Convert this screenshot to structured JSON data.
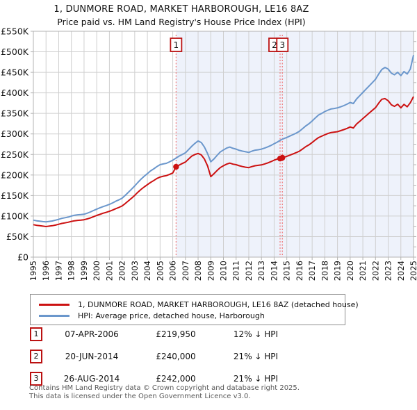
{
  "title": "1, DUNMORE ROAD, MARKET HARBOROUGH, LE16 8AZ",
  "subtitle": "Price paid vs. HM Land Registry's House Price Index (HPI)",
  "colors": {
    "property_line": "#cc1111",
    "hpi_line": "#6b97cc",
    "event_line": "#f07878",
    "event_box_border": "#bb1111",
    "shade": "#eef2fb",
    "grid": "#cfcfcf",
    "spine": "#b3b3b3",
    "footer_text": "#595959"
  },
  "chart_data": {
    "type": "line",
    "title": "1, DUNMORE ROAD, MARKET HARBOROUGH, LE16 8AZ",
    "subtitle": "Price paid vs. HM Land Registry's House Price Index (HPI)",
    "grid": true,
    "legend_position": "bottom",
    "x_axis": {
      "min": 1995,
      "max": 2025,
      "ticks": [
        1995,
        1996,
        1997,
        1998,
        1999,
        2000,
        2001,
        2002,
        2003,
        2004,
        2005,
        2006,
        2007,
        2008,
        2009,
        2010,
        2011,
        2012,
        2013,
        2014,
        2015,
        2016,
        2017,
        2018,
        2019,
        2020,
        2021,
        2022,
        2023,
        2024,
        2025
      ]
    },
    "y_axis": {
      "min": 0,
      "max": 550000,
      "tick_step": 50000,
      "minor_tick_step": 25000,
      "tick_labels": [
        "£0",
        "£50K",
        "£100K",
        "£150K",
        "£200K",
        "£250K",
        "£300K",
        "£350K",
        "£400K",
        "£450K",
        "£500K",
        "£550K"
      ]
    },
    "shade_from": 2006.263,
    "shade_to": 2025,
    "events": [
      {
        "label": "1",
        "year": 2006.263,
        "box_dx": 0
      },
      {
        "label": "2",
        "year": 2014.47,
        "box_dx": -8
      },
      {
        "label": "3",
        "year": 2014.65,
        "box_dx": 0
      }
    ],
    "sale_markers": [
      [
        2006.263,
        219950
      ],
      [
        2014.47,
        240000
      ],
      [
        2014.65,
        242000
      ]
    ],
    "series": [
      {
        "name": "1, DUNMORE ROAD, MARKET HARBOROUGH, LE16 8AZ (detached house)",
        "color": "#cc1111",
        "points": [
          [
            1995.0,
            79000
          ],
          [
            1995.25,
            77500
          ],
          [
            1995.5,
            76500
          ],
          [
            1995.75,
            75500
          ],
          [
            1996.0,
            74500
          ],
          [
            1996.25,
            75500
          ],
          [
            1996.5,
            76500
          ],
          [
            1996.75,
            78000
          ],
          [
            1997.0,
            80000
          ],
          [
            1997.25,
            82000
          ],
          [
            1997.5,
            83500
          ],
          [
            1997.75,
            85000
          ],
          [
            1998.0,
            87000
          ],
          [
            1998.25,
            88500
          ],
          [
            1998.5,
            89500
          ],
          [
            1998.75,
            90000
          ],
          [
            1999.0,
            91000
          ],
          [
            1999.25,
            93000
          ],
          [
            1999.5,
            95500
          ],
          [
            1999.75,
            98500
          ],
          [
            2000.0,
            101500
          ],
          [
            2000.25,
            104000
          ],
          [
            2000.5,
            107000
          ],
          [
            2000.75,
            109000
          ],
          [
            2001.0,
            111500
          ],
          [
            2001.25,
            114500
          ],
          [
            2001.5,
            118000
          ],
          [
            2001.75,
            121000
          ],
          [
            2002.0,
            124500
          ],
          [
            2002.25,
            130500
          ],
          [
            2002.5,
            137000
          ],
          [
            2002.75,
            143500
          ],
          [
            2003.0,
            150500
          ],
          [
            2003.25,
            158000
          ],
          [
            2003.5,
            165000
          ],
          [
            2003.75,
            171000
          ],
          [
            2004.0,
            176500
          ],
          [
            2004.25,
            182000
          ],
          [
            2004.5,
            186500
          ],
          [
            2004.75,
            191500
          ],
          [
            2005.0,
            195000
          ],
          [
            2005.25,
            197000
          ],
          [
            2005.5,
            198500
          ],
          [
            2005.75,
            201500
          ],
          [
            2006.0,
            205000
          ],
          [
            2006.263,
            219950
          ],
          [
            2006.5,
            224000
          ],
          [
            2006.75,
            228000
          ],
          [
            2007.0,
            231500
          ],
          [
            2007.25,
            239000
          ],
          [
            2007.5,
            246000
          ],
          [
            2007.75,
            250000
          ],
          [
            2008.0,
            252500
          ],
          [
            2008.25,
            249000
          ],
          [
            2008.5,
            239000
          ],
          [
            2008.75,
            222000
          ],
          [
            2009.0,
            196000
          ],
          [
            2009.25,
            203000
          ],
          [
            2009.5,
            211000
          ],
          [
            2009.75,
            218000
          ],
          [
            2010.0,
            222500
          ],
          [
            2010.25,
            226500
          ],
          [
            2010.5,
            229000
          ],
          [
            2010.75,
            226500
          ],
          [
            2011.0,
            225000
          ],
          [
            2011.25,
            222500
          ],
          [
            2011.5,
            220500
          ],
          [
            2011.75,
            219000
          ],
          [
            2012.0,
            218000
          ],
          [
            2012.25,
            220500
          ],
          [
            2012.5,
            222500
          ],
          [
            2012.75,
            223500
          ],
          [
            2013.0,
            224500
          ],
          [
            2013.25,
            227000
          ],
          [
            2013.5,
            229500
          ],
          [
            2013.75,
            232500
          ],
          [
            2014.0,
            236000
          ],
          [
            2014.25,
            239000
          ],
          [
            2014.47,
            240000
          ],
          [
            2014.65,
            242000
          ],
          [
            2015.0,
            245500
          ],
          [
            2015.25,
            248500
          ],
          [
            2015.5,
            251500
          ],
          [
            2015.75,
            254500
          ],
          [
            2016.0,
            258000
          ],
          [
            2016.25,
            263500
          ],
          [
            2016.5,
            269000
          ],
          [
            2016.75,
            273500
          ],
          [
            2017.0,
            279000
          ],
          [
            2017.25,
            285500
          ],
          [
            2017.5,
            291000
          ],
          [
            2017.75,
            294500
          ],
          [
            2018.0,
            298000
          ],
          [
            2018.25,
            301000
          ],
          [
            2018.5,
            303500
          ],
          [
            2018.75,
            304500
          ],
          [
            2019.0,
            305500
          ],
          [
            2019.25,
            308000
          ],
          [
            2019.5,
            310500
          ],
          [
            2019.75,
            313500
          ],
          [
            2020.0,
            317000
          ],
          [
            2020.25,
            314500
          ],
          [
            2020.5,
            324000
          ],
          [
            2020.75,
            330500
          ],
          [
            2021.0,
            337500
          ],
          [
            2021.25,
            344000
          ],
          [
            2021.5,
            351000
          ],
          [
            2021.75,
            357500
          ],
          [
            2022.0,
            364000
          ],
          [
            2022.25,
            375000
          ],
          [
            2022.5,
            384500
          ],
          [
            2022.75,
            386000
          ],
          [
            2023.0,
            381000
          ],
          [
            2023.25,
            371000
          ],
          [
            2023.5,
            367000
          ],
          [
            2023.75,
            372500
          ],
          [
            2024.0,
            363500
          ],
          [
            2024.25,
            372000
          ],
          [
            2024.5,
            366000
          ],
          [
            2024.75,
            376000
          ],
          [
            2025.0,
            391000
          ]
        ]
      },
      {
        "name": "HPI: Average price, detached house, Harborough",
        "color": "#6b97cc",
        "points": [
          [
            1995.0,
            90000
          ],
          [
            1995.25,
            88500
          ],
          [
            1995.5,
            87500
          ],
          [
            1995.75,
            86500
          ],
          [
            1996.0,
            86000
          ],
          [
            1996.25,
            87000
          ],
          [
            1996.5,
            88000
          ],
          [
            1996.75,
            90000
          ],
          [
            1997.0,
            92000
          ],
          [
            1997.25,
            94500
          ],
          [
            1997.5,
            96000
          ],
          [
            1997.75,
            97500
          ],
          [
            1998.0,
            100000
          ],
          [
            1998.25,
            102000
          ],
          [
            1998.5,
            103000
          ],
          [
            1998.75,
            103500
          ],
          [
            1999.0,
            104500
          ],
          [
            1999.25,
            107000
          ],
          [
            1999.5,
            110000
          ],
          [
            1999.75,
            113500
          ],
          [
            2000.0,
            117000
          ],
          [
            2000.25,
            120000
          ],
          [
            2000.5,
            123000
          ],
          [
            2000.75,
            125500
          ],
          [
            2001.0,
            128500
          ],
          [
            2001.25,
            132000
          ],
          [
            2001.5,
            136000
          ],
          [
            2001.75,
            139500
          ],
          [
            2002.0,
            143500
          ],
          [
            2002.25,
            150500
          ],
          [
            2002.5,
            158000
          ],
          [
            2002.75,
            165500
          ],
          [
            2003.0,
            173500
          ],
          [
            2003.25,
            182000
          ],
          [
            2003.5,
            190000
          ],
          [
            2003.75,
            197000
          ],
          [
            2004.0,
            203500
          ],
          [
            2004.25,
            210000
          ],
          [
            2004.5,
            215000
          ],
          [
            2004.75,
            220500
          ],
          [
            2005.0,
            225000
          ],
          [
            2005.25,
            227000
          ],
          [
            2005.5,
            228500
          ],
          [
            2005.75,
            232000
          ],
          [
            2006.0,
            236000
          ],
          [
            2006.25,
            241000
          ],
          [
            2006.5,
            246000
          ],
          [
            2006.75,
            250000
          ],
          [
            2007.0,
            254000
          ],
          [
            2007.25,
            262000
          ],
          [
            2007.5,
            270000
          ],
          [
            2007.75,
            277000
          ],
          [
            2008.0,
            283000
          ],
          [
            2008.25,
            279000
          ],
          [
            2008.5,
            268000
          ],
          [
            2008.75,
            252000
          ],
          [
            2009.0,
            232000
          ],
          [
            2009.25,
            239000
          ],
          [
            2009.5,
            248000
          ],
          [
            2009.75,
            256000
          ],
          [
            2010.0,
            261000
          ],
          [
            2010.25,
            265500
          ],
          [
            2010.5,
            268000
          ],
          [
            2010.75,
            265000
          ],
          [
            2011.0,
            263000
          ],
          [
            2011.25,
            260000
          ],
          [
            2011.5,
            258000
          ],
          [
            2011.75,
            256500
          ],
          [
            2012.0,
            255000
          ],
          [
            2012.25,
            258000
          ],
          [
            2012.5,
            260500
          ],
          [
            2012.75,
            261500
          ],
          [
            2013.0,
            263000
          ],
          [
            2013.25,
            265500
          ],
          [
            2013.5,
            268500
          ],
          [
            2013.75,
            272000
          ],
          [
            2014.0,
            276000
          ],
          [
            2014.25,
            280000
          ],
          [
            2014.5,
            285000
          ],
          [
            2014.75,
            288500
          ],
          [
            2015.0,
            291500
          ],
          [
            2015.25,
            295000
          ],
          [
            2015.5,
            298500
          ],
          [
            2015.75,
            302000
          ],
          [
            2016.0,
            306500
          ],
          [
            2016.25,
            313000
          ],
          [
            2016.5,
            319500
          ],
          [
            2016.75,
            325000
          ],
          [
            2017.0,
            331500
          ],
          [
            2017.25,
            339000
          ],
          [
            2017.5,
            346000
          ],
          [
            2017.75,
            350000
          ],
          [
            2018.0,
            354500
          ],
          [
            2018.25,
            358000
          ],
          [
            2018.5,
            361000
          ],
          [
            2018.75,
            362000
          ],
          [
            2019.0,
            363500
          ],
          [
            2019.25,
            366000
          ],
          [
            2019.5,
            369000
          ],
          [
            2019.75,
            372500
          ],
          [
            2020.0,
            376500
          ],
          [
            2020.25,
            374000
          ],
          [
            2020.5,
            385000
          ],
          [
            2020.75,
            393000
          ],
          [
            2021.0,
            401000
          ],
          [
            2021.25,
            409000
          ],
          [
            2021.5,
            417000
          ],
          [
            2021.75,
            425000
          ],
          [
            2022.0,
            433000
          ],
          [
            2022.25,
            446000
          ],
          [
            2022.5,
            457000
          ],
          [
            2022.75,
            462000
          ],
          [
            2023.0,
            458000
          ],
          [
            2023.25,
            448000
          ],
          [
            2023.5,
            444000
          ],
          [
            2023.75,
            450000
          ],
          [
            2024.0,
            442000
          ],
          [
            2024.25,
            452000
          ],
          [
            2024.5,
            446000
          ],
          [
            2024.75,
            458000
          ],
          [
            2025.0,
            492000
          ]
        ]
      }
    ]
  },
  "legend": {
    "entries": [
      {
        "label": "1, DUNMORE ROAD, MARKET HARBOROUGH, LE16 8AZ (detached house)",
        "color": "#cc1111"
      },
      {
        "label": "HPI: Average price, detached house, Harborough",
        "color": "#6b97cc"
      }
    ]
  },
  "transactions": [
    {
      "num": "1",
      "date": "07-APR-2006",
      "price": "£219,950",
      "hpi": "12% ↓ HPI"
    },
    {
      "num": "2",
      "date": "20-JUN-2014",
      "price": "£240,000",
      "hpi": "21% ↓ HPI"
    },
    {
      "num": "3",
      "date": "26-AUG-2014",
      "price": "£242,000",
      "hpi": "21% ↓ HPI"
    }
  ],
  "footer": {
    "line1": "Contains HM Land Registry data © Crown copyright and database right 2025.",
    "line2": "This data is licensed under the Open Government Licence v3.0."
  }
}
